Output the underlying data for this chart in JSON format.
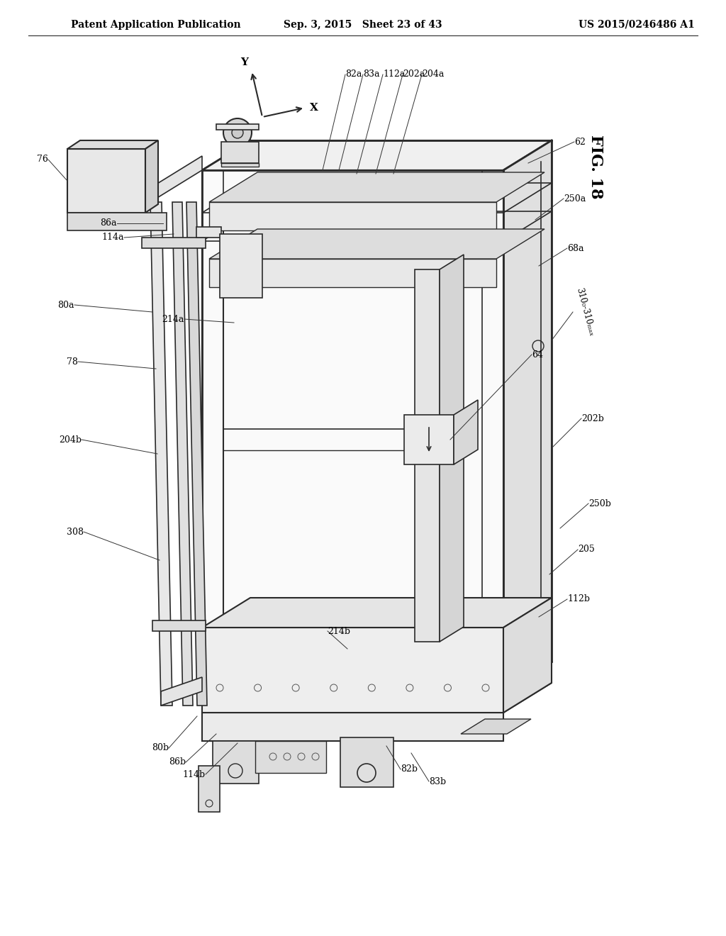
{
  "background_color": "#ffffff",
  "line_color": "#2a2a2a",
  "header_left": "Patent Application Publication",
  "header_center": "Sep. 3, 2015   Sheet 23 of 43",
  "header_right": "US 2015/0246486 A1",
  "fig_number": "FIG. 18",
  "header_font_size": 10,
  "fig_font_size": 16,
  "label_font_size": 9
}
